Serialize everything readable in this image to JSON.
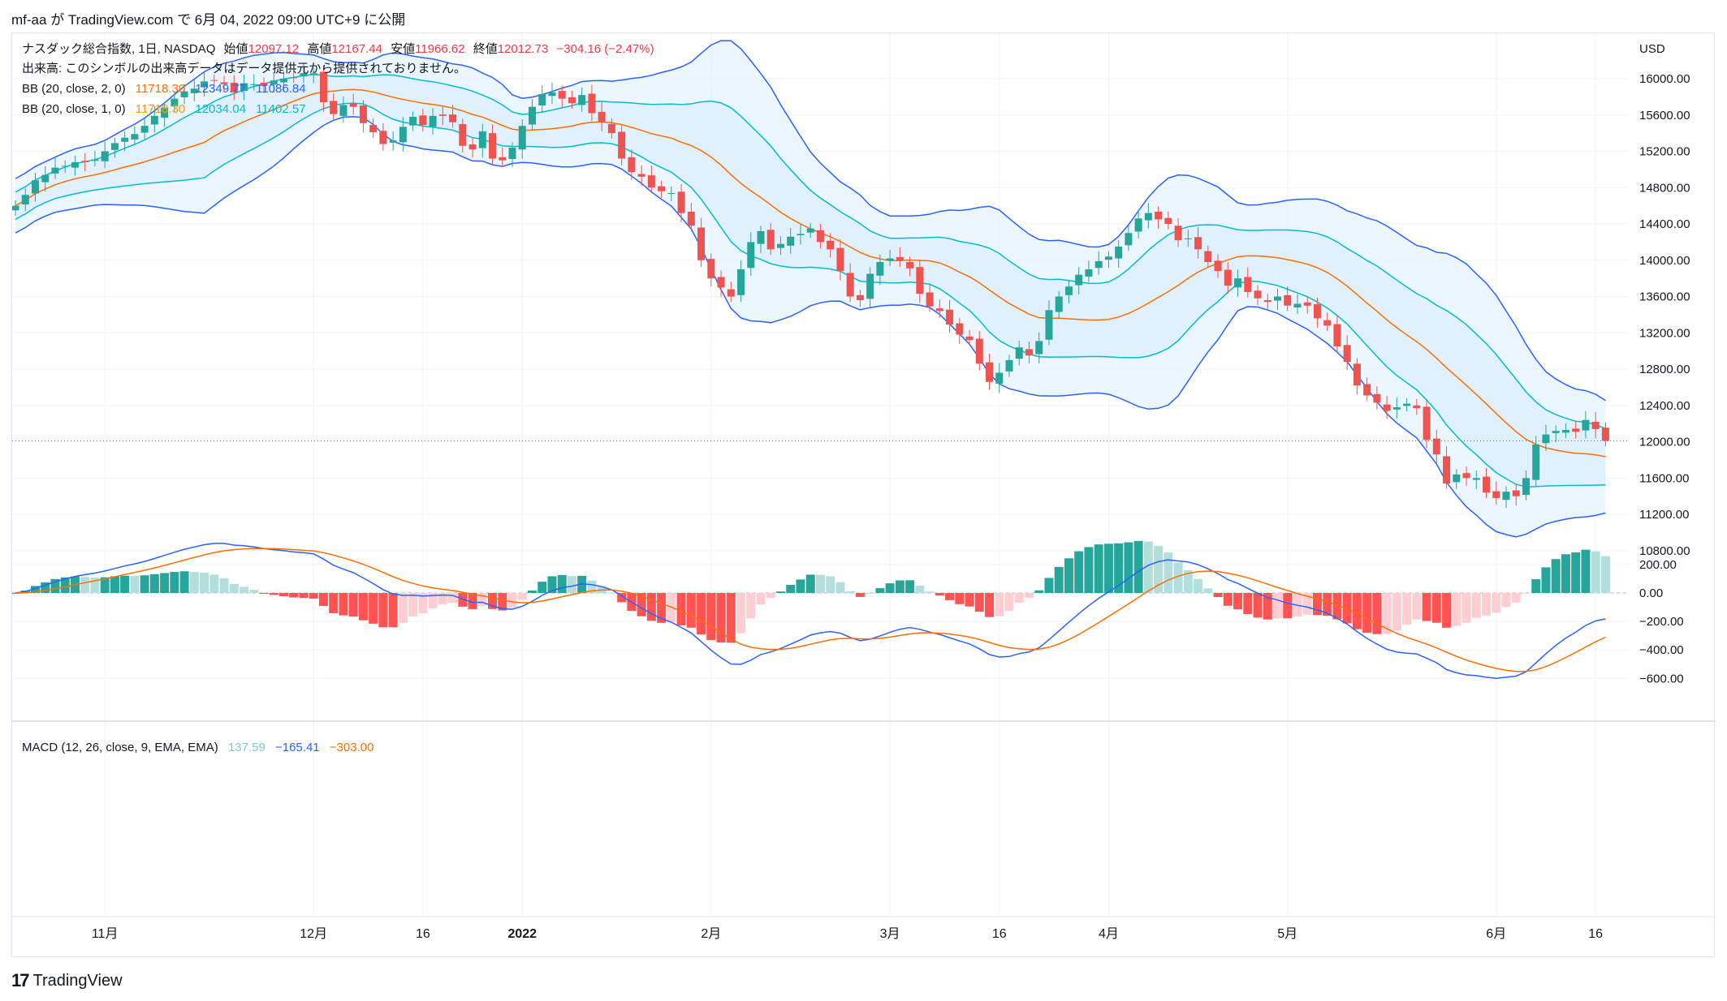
{
  "header": {
    "author": "mf-aa",
    "published_text": " が TradingView.com で 6月 04, 2022 09:00 UTC+9 に公開"
  },
  "legend": {
    "symbol": "ナスダック総合指数, 1日, NASDAQ",
    "o_label": "始値",
    "o": "12097.12",
    "h_label": "高値",
    "h": "12167.44",
    "l_label": "安値",
    "l": "11966.62",
    "c_label": "終値",
    "c": "12012.73",
    "change": "−304.16 (−2.47%)",
    "volume_note": "出来高: このシンボルの出来高データはデータ提供元から提供されておりません。",
    "bb1": {
      "label": "BB (20, close, 2, 0)",
      "basis": "11718.30",
      "upper": "12349.77",
      "lower": "11086.84"
    },
    "bb2": {
      "label": "BB (20, close, 1, 0)",
      "basis": "11718.30",
      "upper": "12034.04",
      "lower": "11402.57"
    }
  },
  "macd": {
    "label": "MACD (12, 26, close, 9, EMA, EMA)",
    "hist": "137.59",
    "macd": "−165.41",
    "signal": "−303.00"
  },
  "price_axis": {
    "currency": "USD",
    "ticks": [
      "16000.00",
      "15600.00",
      "15200.00",
      "14800.00",
      "14400.00",
      "14000.00",
      "13600.00",
      "13200.00",
      "12800.00",
      "12400.00",
      "12000.00",
      "11600.00",
      "11200.00",
      "10800.00"
    ]
  },
  "macd_axis": {
    "ticks": [
      "200.00",
      "0.00",
      "−200.00",
      "−400.00",
      "−600.00"
    ]
  },
  "time_axis": {
    "labels": [
      {
        "text": "11月",
        "bar": 9
      },
      {
        "text": "12月",
        "bar": 30
      },
      {
        "text": "16",
        "bar": 41
      },
      {
        "text": "2022",
        "bar": 51
      },
      {
        "text": "2月",
        "bar": 70
      },
      {
        "text": "3月",
        "bar": 88
      },
      {
        "text": "16",
        "bar": 99
      },
      {
        "text": "4月",
        "bar": 110
      },
      {
        "text": "5月",
        "bar": 128
      },
      {
        "text": "6月",
        "bar": 149
      },
      {
        "text": "16",
        "bar": 159
      }
    ]
  },
  "footer": {
    "brand": "TradingView"
  },
  "colors": {
    "up": "#26a69a",
    "down": "#ef5350",
    "bb_outer": "#2962ff",
    "bb_inner": "#00bcd4",
    "basis": "#ff6d00",
    "fill_outer": "#e3f2fd",
    "fill_inner": "#d6ecfb",
    "hist_up_strong": "#26a69a",
    "hist_up_weak": "#b2dfdb",
    "hist_down_strong": "#ff5252",
    "hist_down_weak": "#ffcdd2",
    "macd_line": "#2962ff",
    "signal_line": "#ff6d00",
    "last_price_line": "#f23645"
  },
  "chart_data": {
    "type": "candlestick",
    "price_ylim": [
      10800,
      16400
    ],
    "macd_ylim": [
      -650,
      260
    ],
    "closes": [
      14600,
      14720,
      14880,
      14940,
      15020,
      15040,
      15080,
      15080,
      15110,
      15200,
      15290,
      15350,
      15390,
      15480,
      15590,
      15680,
      15780,
      15860,
      15890,
      15970,
      15980,
      15940,
      15850,
      15950,
      15940,
      15920,
      15980,
      16000,
      16010,
      16060,
      16060,
      15740,
      15610,
      15710,
      15690,
      15510,
      15410,
      15280,
      15320,
      15470,
      15580,
      15490,
      15590,
      15590,
      15520,
      15260,
      15220,
      15420,
      15120,
      15100,
      15240,
      15480,
      15690,
      15830,
      15850,
      15780,
      15730,
      15820,
      15620,
      15520,
      15400,
      15120,
      14970,
      14920,
      14800,
      14760,
      14740,
      14520,
      14380,
      14000,
      13800,
      13700,
      13600,
      13900,
      14200,
      14320,
      14120,
      14180,
      14260,
      14290,
      14350,
      14200,
      14120,
      13880,
      13600,
      13560,
      13850,
      13980,
      14020,
      14000,
      13910,
      13630,
      13490,
      13440,
      13290,
      13180,
      13120,
      12860,
      12660,
      12760,
      12900,
      13040,
      12950,
      13110,
      13450,
      13600,
      13710,
      13840,
      13900,
      13990,
      14040,
      14150,
      14300,
      14460,
      14520,
      14450,
      14400,
      14220,
      14240,
      14120,
      13980,
      13880,
      13720,
      13800,
      13650,
      13580,
      13540,
      13600,
      13500,
      13520,
      13500,
      13360,
      13280,
      13050,
      12880,
      12620,
      12510,
      12430,
      12340,
      12380,
      12420,
      12370,
      12020,
      11860,
      11540,
      11640,
      11600,
      11600,
      11440,
      11380,
      11450,
      11400,
      11600,
      11970,
      12080,
      12120,
      12130,
      12110,
      12240,
      12140,
      12010
    ]
  }
}
